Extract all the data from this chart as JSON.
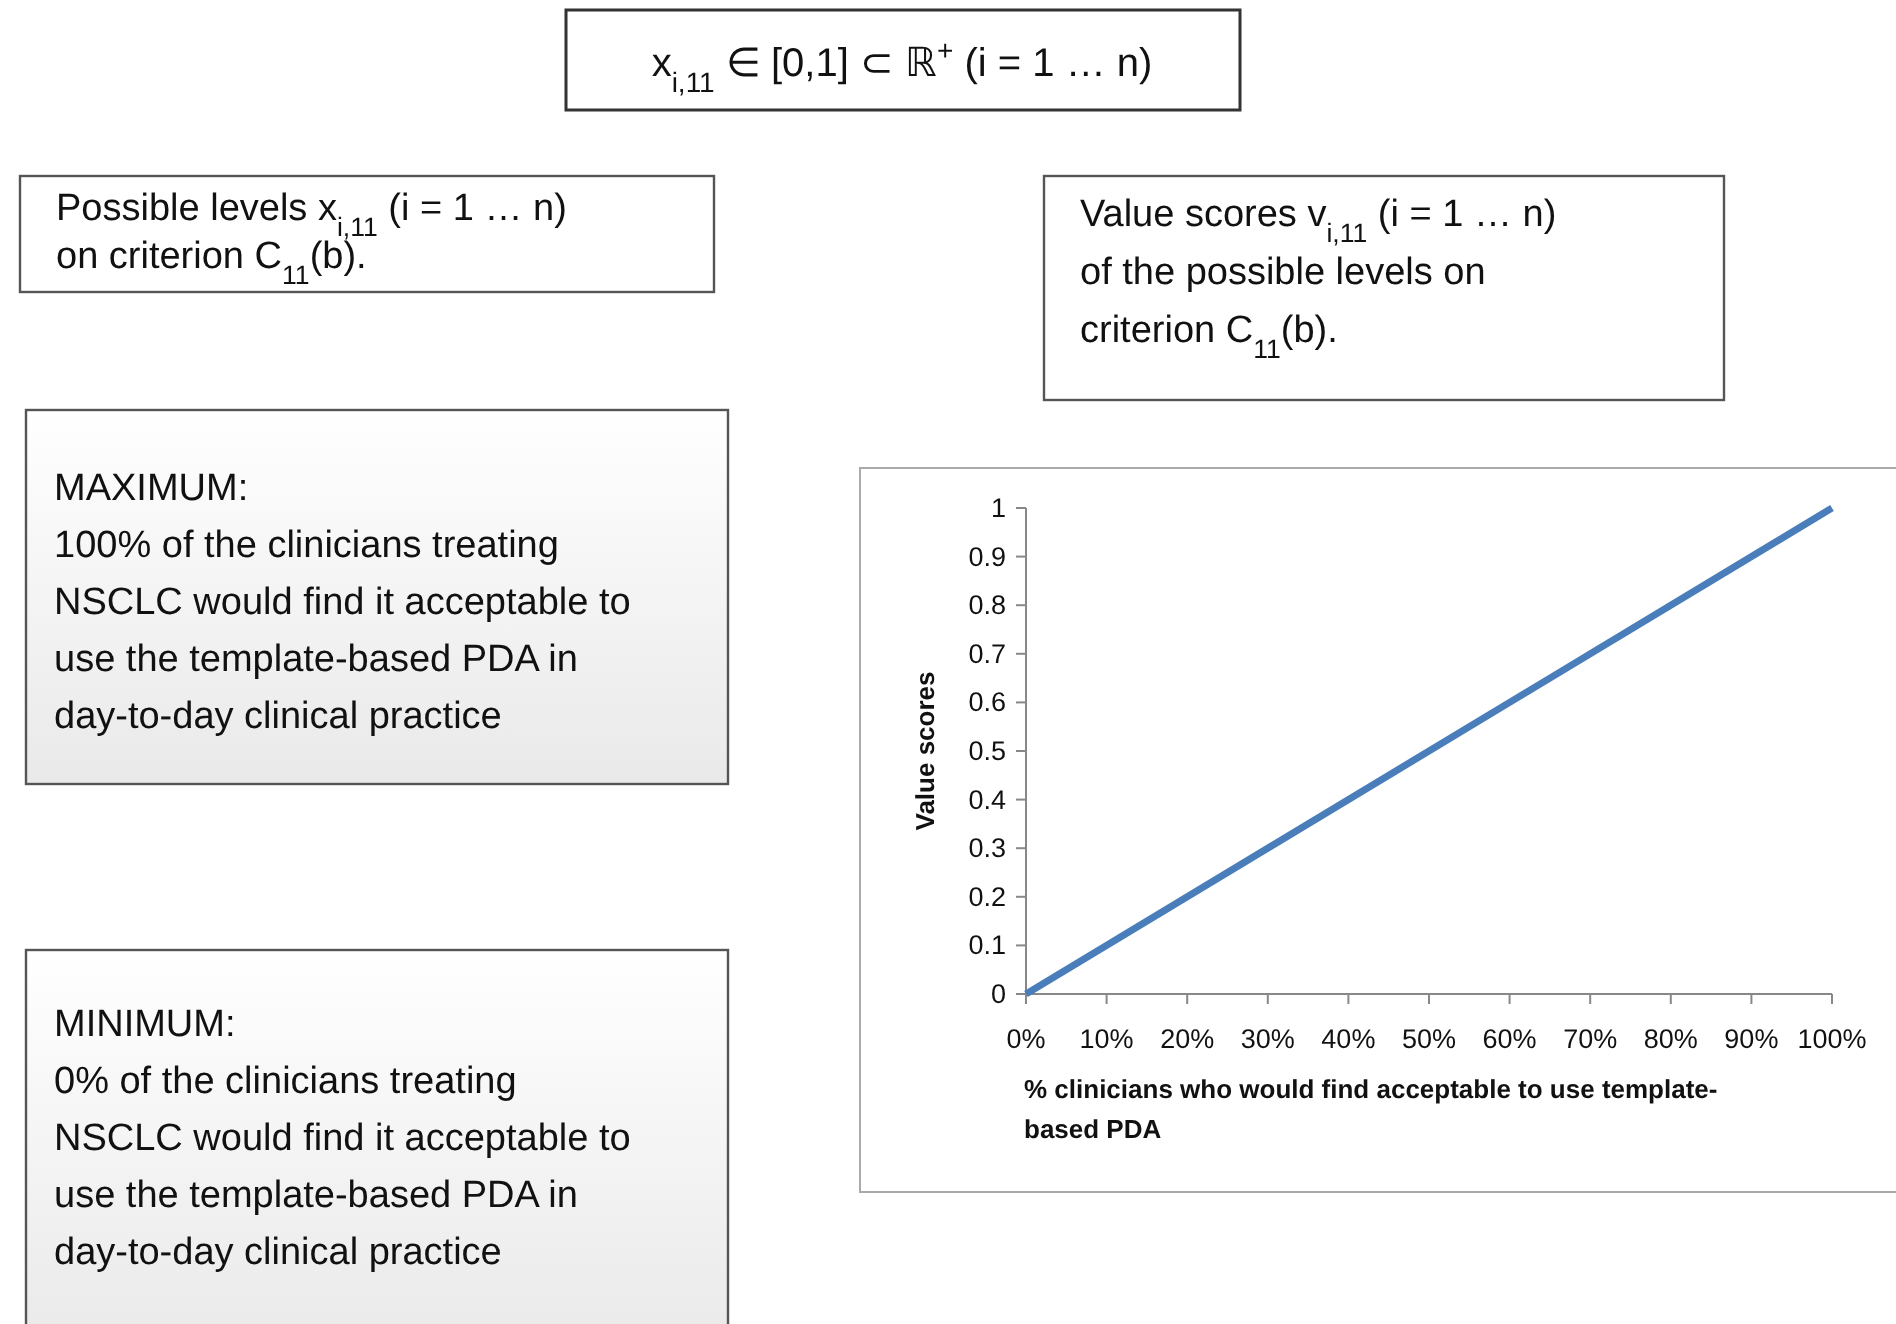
{
  "chart_data": {
    "type": "line",
    "title": "x$_{i,11}$ ∈ [0,1] ⊂ ℝ$^{+}$ (i = 1 … n)",
    "xlabel": "% clinicians who would find acceptable to use template-\nbased PDA",
    "ylabel": "Value scores",
    "x": [
      0,
      100
    ],
    "series": [
      {
        "color": "#4a7ebb",
        "values": [
          0,
          1
        ]
      }
    ],
    "xlim": [
      0,
      100
    ],
    "ylim": [
      0,
      1
    ],
    "xticks": [
      {
        "value": 0,
        "label": "0%"
      },
      {
        "value": 10,
        "label": "10%"
      },
      {
        "value": 20,
        "label": "20%"
      },
      {
        "value": 30,
        "label": "30%"
      },
      {
        "value": 40,
        "label": "40%"
      },
      {
        "value": 50,
        "label": "50%"
      },
      {
        "value": 60,
        "label": "60%"
      },
      {
        "value": 70,
        "label": "70%"
      },
      {
        "value": 80,
        "label": "80%"
      },
      {
        "value": 90,
        "label": "90%"
      },
      {
        "value": 100,
        "label": "100%"
      }
    ],
    "yticks": [
      0,
      0.1,
      0.2,
      0.3,
      0.4,
      0.5,
      0.6,
      0.7,
      0.8,
      0.9,
      1
    ],
    "grid": false,
    "marker": "none",
    "line_style": "solid",
    "annotations": [
      "Possible levels x$_{i,11}$ (i = 1 … n)\non criterion C$_{11}$(b).",
      "Value scores v$_{i,11}$ (i = 1 … n)\nof the possible levels on\ncriterion C$_{11}$(b).",
      "MAXIMUM:\n100% of the clinicians treating\nNSCLC would find it acceptable to\nuse the template-based PDA in\nday-to-day clinical practice",
      "MINIMUM:\n0% of the clinicians treating\nNSCLC would find it acceptable to\nuse the template-based PDA in\nday-to-day clinical practice"
    ]
  }
}
